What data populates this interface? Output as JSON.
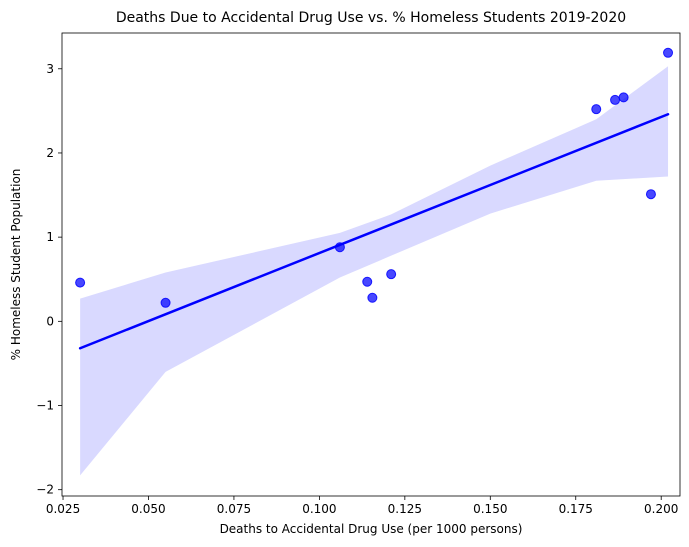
{
  "chart_data": {
    "type": "scatter",
    "title": "Deaths Due to Accidental Drug Use vs. % Homeless Students 2019-2020",
    "xlabel": "Deaths to Accidental Drug Use (per 1000 persons)",
    "ylabel": "% Homeless Student Population",
    "xlim": [
      0.0247,
      0.2055
    ],
    "ylim": [
      -2.075,
      3.425
    ],
    "xticks": [
      0.025,
      0.05,
      0.075,
      0.1,
      0.125,
      0.15,
      0.175,
      0.2
    ],
    "xtick_labels": [
      "0.025",
      "0.050",
      "0.075",
      "0.100",
      "0.125",
      "0.150",
      "0.175",
      "0.200"
    ],
    "yticks": [
      -2,
      -1,
      0,
      1,
      2,
      3
    ],
    "ytick_labels": [
      "−2",
      "−1",
      "0",
      "1",
      "2",
      "3"
    ],
    "grid": false,
    "legend": "none",
    "colors": {
      "points": "#0000ff",
      "line": "#0000ff",
      "band": "#d9d9ff"
    },
    "series": [
      {
        "kind": "points",
        "x": [
          0.03,
          0.055,
          0.106,
          0.114,
          0.1155,
          0.121,
          0.181,
          0.1865,
          0.189,
          0.197,
          0.202
        ],
        "y": [
          0.46,
          0.22,
          0.88,
          0.47,
          0.28,
          0.56,
          2.52,
          2.63,
          2.66,
          1.51,
          3.19
        ]
      },
      {
        "kind": "regression-line",
        "x": [
          0.03,
          0.202
        ],
        "y": [
          -0.32,
          2.46
        ]
      },
      {
        "kind": "confidence-band",
        "x": [
          0.03,
          0.055,
          0.106,
          0.121,
          0.15,
          0.181,
          0.202
        ],
        "upper": [
          0.27,
          0.58,
          1.05,
          1.27,
          1.85,
          2.4,
          3.03
        ],
        "lower": [
          -1.83,
          -0.6,
          0.52,
          0.78,
          1.28,
          1.67,
          1.72
        ]
      }
    ]
  }
}
